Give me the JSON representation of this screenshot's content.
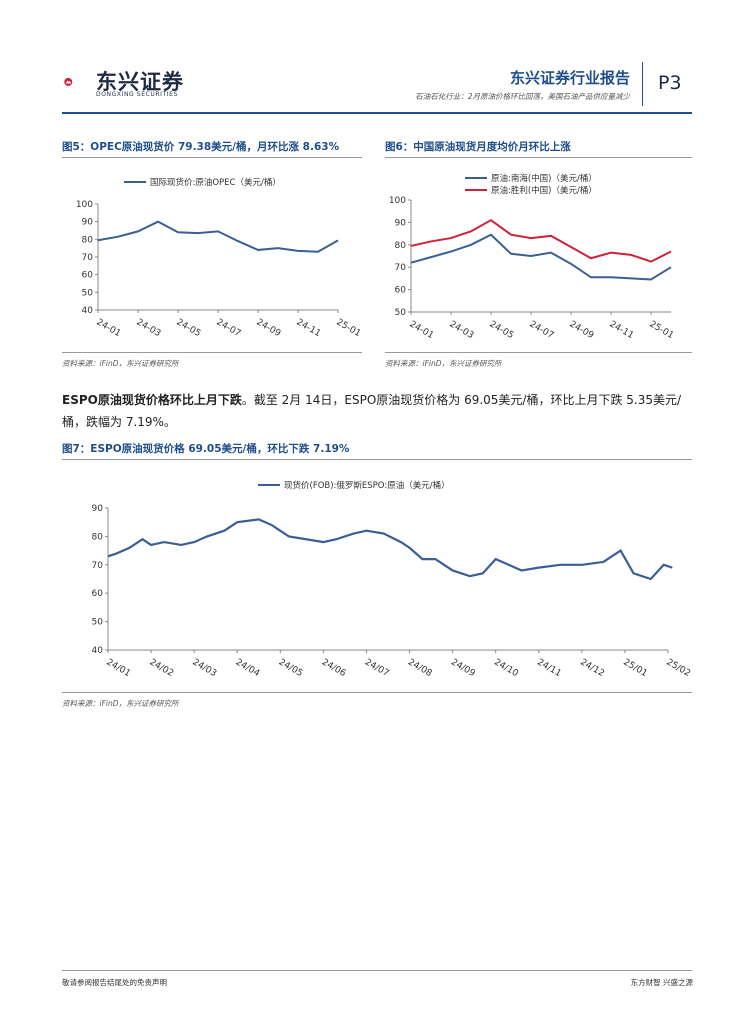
{
  "header": {
    "brand_cn": "东兴证券",
    "brand_en": "DONGXING SECURITIES",
    "report_title": "东兴证券行业报告",
    "report_subtitle": "石油石化行业：2月原油价格环比回落，美国石油产品供应量减少",
    "page": "P3"
  },
  "colors": {
    "blue": "#3a5f95",
    "red": "#d0213a",
    "accent": "#1f4e8c"
  },
  "fig5": {
    "title": "图5：OPEC原油现货价 79.38美元/桶，月环比涨 8.63%",
    "source": "资料来源：iFinD，东兴证券研究所"
  },
  "fig6": {
    "title": "图6：中国原油现货月度均价月环比上涨",
    "source": "资料来源：iFinD，东兴证券研究所"
  },
  "paragraph": {
    "lead": "ESPO原油现货价格环比上月下跌",
    "body": "。截至 2月 14日，ESPO原油现货价格为 69.05美元/桶，环比上月下跌 5.35美元/桶，跌幅为 7.19%。"
  },
  "fig7": {
    "title": "图7：ESPO原油现货价格 69.05美元/桶，环比下跌 7.19%",
    "source": "资料来源：iFinD，东兴证券研究所"
  },
  "footer": {
    "left": "敬请参阅报告结尾处的免责声明",
    "right": "东方财智 兴盛之源"
  },
  "chart_data": [
    {
      "type": "line",
      "id": "fig5",
      "series": [
        {
          "name": "国际现货价:原油OPEC（美元/桶）",
          "color": "#3a5f95",
          "values": [
            79.5,
            81.5,
            84.5,
            90,
            84,
            83.5,
            84.5,
            79,
            74,
            75,
            73.5,
            73,
            79.4
          ]
        }
      ],
      "x_count": 13,
      "tick_labels": [
        "24-01",
        "24-03",
        "24-05",
        "24-07",
        "24-09",
        "24-11",
        "25-01"
      ],
      "tick_index": [
        0,
        2,
        4,
        6,
        8,
        10,
        12
      ],
      "ylim": [
        40,
        100
      ],
      "yticks": [
        40,
        50,
        60,
        70,
        80,
        90,
        100
      ]
    },
    {
      "type": "line",
      "id": "fig6",
      "series": [
        {
          "name": "原油:南海(中国)（美元/桶）",
          "color": "#3a5f95",
          "values": [
            72,
            74.5,
            77,
            80,
            84.5,
            76,
            75,
            76.5,
            71.5,
            65.5,
            65.5,
            65,
            64.5,
            70
          ]
        },
        {
          "name": "原油:胜利(中国)（美元/桶）",
          "color": "#d0213a",
          "values": [
            79.5,
            81.5,
            83,
            86,
            91,
            84.5,
            83,
            84,
            79,
            74,
            76.5,
            75.5,
            72.5,
            77
          ]
        }
      ],
      "x_count": 14,
      "tick_labels": [
        "24-01",
        "24-03",
        "24-05",
        "24-07",
        "24-09",
        "24-11",
        "25-01"
      ],
      "tick_index": [
        0,
        2,
        4,
        6,
        8,
        10,
        12
      ],
      "ylim": [
        50,
        100
      ],
      "yticks": [
        50,
        60,
        70,
        80,
        90,
        100
      ]
    },
    {
      "type": "line",
      "id": "fig7",
      "series": [
        {
          "name": "现货价(FOB):俄罗斯ESPO:原油（美元/桶）",
          "color": "#3a5f95",
          "knots": [
            [
              0,
              73
            ],
            [
              0.2,
              74
            ],
            [
              0.5,
              76
            ],
            [
              0.8,
              79
            ],
            [
              1.0,
              77
            ],
            [
              1.3,
              78
            ],
            [
              1.7,
              77
            ],
            [
              2.0,
              78
            ],
            [
              2.3,
              80
            ],
            [
              2.7,
              82
            ],
            [
              3.0,
              85
            ],
            [
              3.5,
              86
            ],
            [
              3.8,
              84
            ],
            [
              4.2,
              80
            ],
            [
              4.6,
              79
            ],
            [
              5.0,
              78
            ],
            [
              5.3,
              79
            ],
            [
              5.7,
              81
            ],
            [
              6.0,
              82
            ],
            [
              6.4,
              81
            ],
            [
              6.8,
              78
            ],
            [
              7.0,
              76
            ],
            [
              7.3,
              72
            ],
            [
              7.6,
              72
            ],
            [
              8.0,
              68
            ],
            [
              8.4,
              66
            ],
            [
              8.7,
              67
            ],
            [
              9.0,
              72
            ],
            [
              9.3,
              70
            ],
            [
              9.6,
              68
            ],
            [
              10.0,
              69
            ],
            [
              10.5,
              70
            ],
            [
              11.0,
              70
            ],
            [
              11.5,
              71
            ],
            [
              11.9,
              75
            ],
            [
              12.2,
              67
            ],
            [
              12.6,
              65
            ],
            [
              12.9,
              70
            ],
            [
              13.1,
              69
            ]
          ]
        }
      ],
      "tick_labels": [
        "24/01",
        "24/02",
        "24/03",
        "24/04",
        "24/05",
        "24/06",
        "24/07",
        "24/08",
        "24/09",
        "24/10",
        "24/11",
        "24/12",
        "25/01",
        "25/02"
      ],
      "x_count": 14,
      "ylim": [
        40,
        90
      ],
      "yticks": [
        40,
        50,
        60,
        70,
        80,
        90
      ]
    }
  ]
}
